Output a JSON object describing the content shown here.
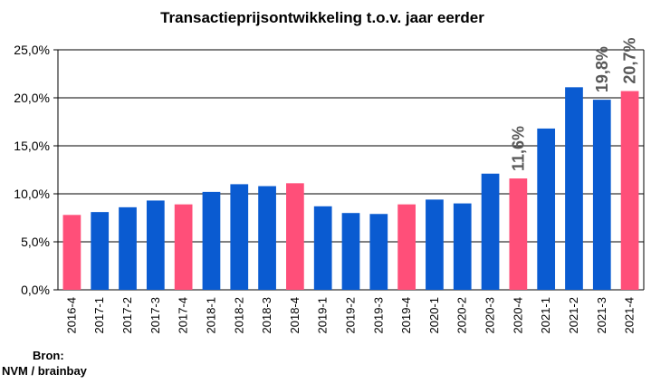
{
  "chart_data": {
    "type": "bar",
    "title": "Transactieprijsontwikkeling t.o.v. jaar eerder",
    "xlabel": "",
    "ylabel": "",
    "ylim": [
      0,
      25
    ],
    "grid": true,
    "y_ticks": [
      "0,0%",
      "5,0%",
      "10,0%",
      "15,0%",
      "20,0%",
      "25,0%"
    ],
    "categories": [
      "2016-4",
      "2017-1",
      "2017-2",
      "2017-3",
      "2017-4",
      "2018-1",
      "2018-2",
      "2018-3",
      "2018-4",
      "2019-1",
      "2019-2",
      "2019-3",
      "2019-4",
      "2020-1",
      "2020-2",
      "2020-3",
      "2020-4",
      "2021-1",
      "2021-2",
      "2021-3",
      "2021-4"
    ],
    "values": [
      7.8,
      8.1,
      8.6,
      9.3,
      8.9,
      10.2,
      11.0,
      10.8,
      11.1,
      8.7,
      8.0,
      7.9,
      8.9,
      9.4,
      9.0,
      12.1,
      11.6,
      16.8,
      21.1,
      19.8,
      20.7
    ],
    "highlight": [
      true,
      false,
      false,
      false,
      true,
      false,
      false,
      false,
      true,
      false,
      false,
      false,
      true,
      false,
      false,
      false,
      true,
      false,
      false,
      false,
      true
    ],
    "data_labels": [
      {
        "index": 16,
        "text": "11,6%"
      },
      {
        "index": 19,
        "text": "19,8%"
      },
      {
        "index": 20,
        "text": "20,7%"
      }
    ],
    "colors": {
      "default": "#0a5bd1",
      "highlight": "#ff4f79",
      "grid": "#000000",
      "label": "#595959"
    }
  },
  "source": {
    "line1": "Bron:",
    "line2": "NVM / brainbay"
  }
}
